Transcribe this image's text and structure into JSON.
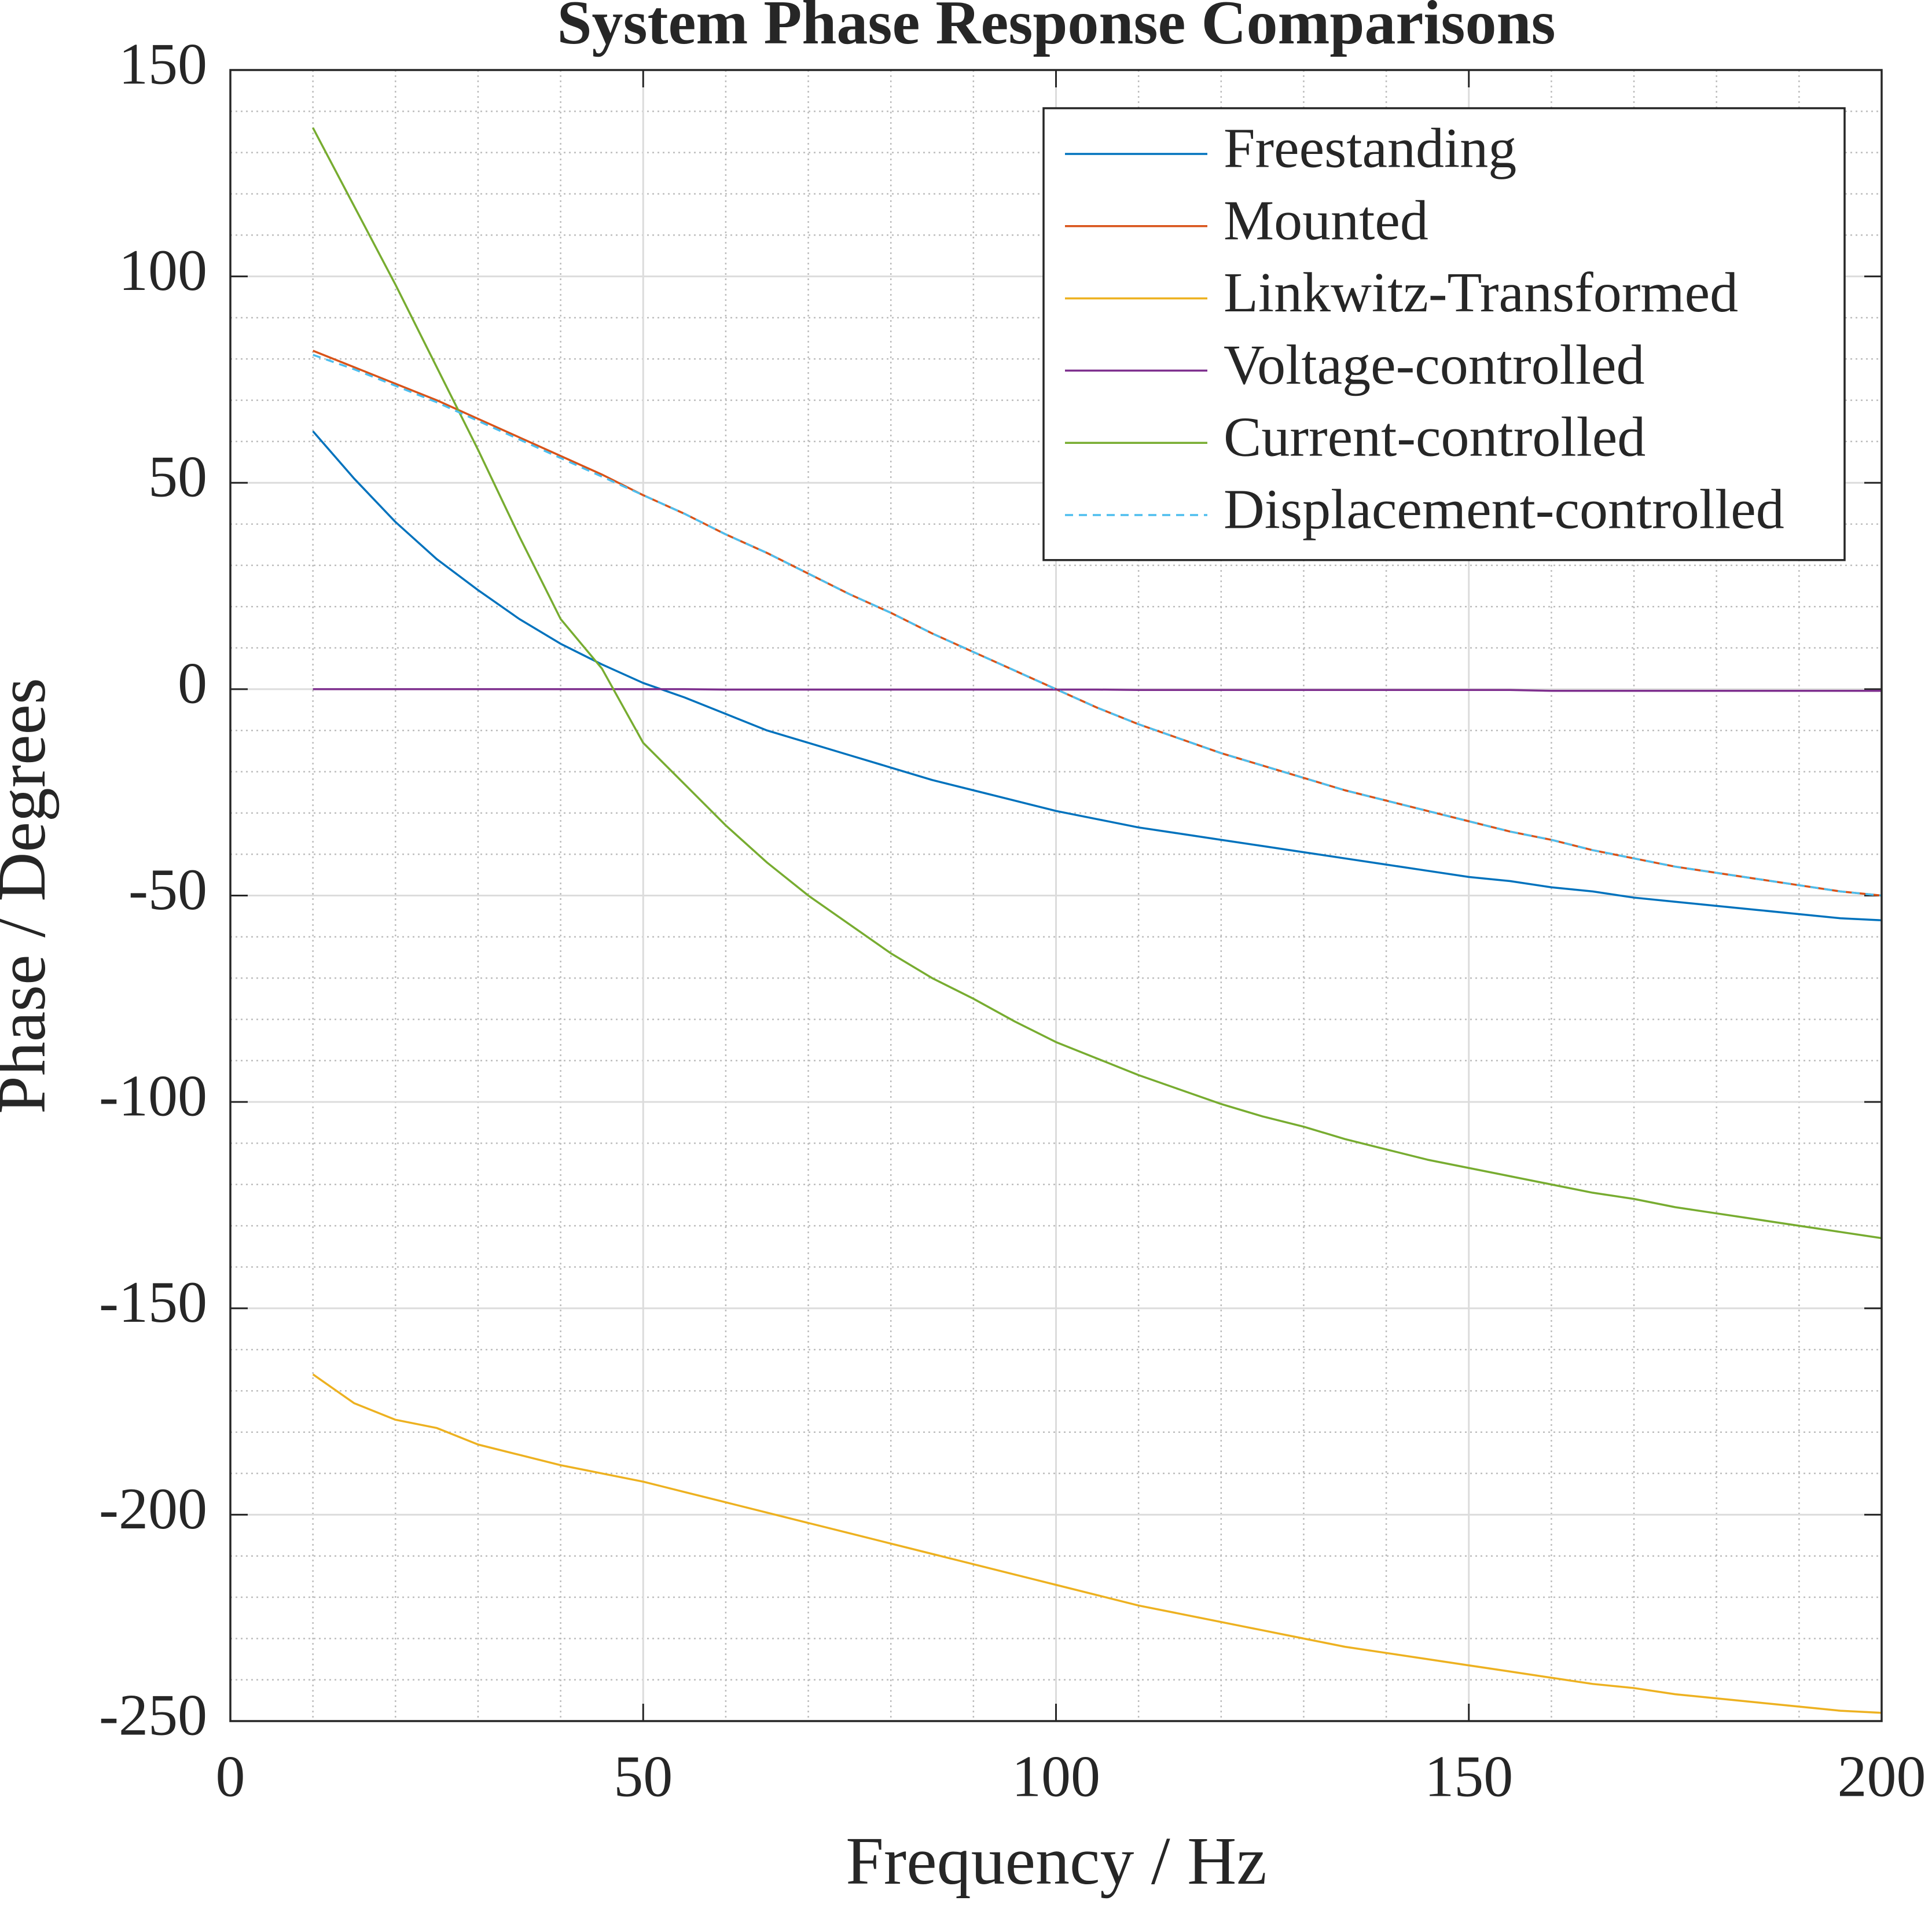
{
  "chart_data": {
    "type": "line",
    "title": "System Phase Response Comparisons",
    "xlabel": "Frequency / Hz",
    "ylabel": "Phase / Degrees",
    "x": [
      10,
      15,
      20,
      25,
      30,
      35,
      40,
      45,
      50,
      55,
      60,
      65,
      70,
      75,
      80,
      85,
      90,
      95,
      100,
      105,
      110,
      115,
      120,
      125,
      130,
      135,
      140,
      145,
      150,
      155,
      160,
      165,
      170,
      175,
      180,
      185,
      190,
      195,
      200
    ],
    "series": [
      {
        "name": "Freestanding",
        "color": "#0072bd",
        "values": [
          62.5,
          51,
          40.5,
          31.5,
          24,
          17,
          11,
          6,
          1.5,
          -2,
          -6,
          -10,
          -13,
          -16,
          -19,
          -22,
          -24.5,
          -27,
          -29.5,
          -31.5,
          -33.5,
          -35,
          -36.5,
          -38,
          -39.5,
          -41,
          -42.5,
          -44,
          -45.5,
          -46.5,
          -48,
          -49,
          -50.5,
          -51.5,
          -52.5,
          -53.5,
          -54.5,
          -55.5,
          -56
        ]
      },
      {
        "name": "Mounted",
        "color": "#d95319",
        "values": [
          82,
          78,
          74,
          70,
          65.5,
          61,
          56.5,
          52,
          47,
          42.5,
          37.5,
          33,
          28,
          23,
          18.5,
          13.5,
          9,
          4.5,
          0,
          -4.5,
          -8.5,
          -12,
          -15.5,
          -18.5,
          -21.5,
          -24.5,
          -27,
          -29.5,
          -32,
          -34.5,
          -36.5,
          -39,
          -41,
          -43,
          -44.5,
          -46,
          -47.5,
          -49,
          -50
        ]
      },
      {
        "name": "Linkwitz-Transformed",
        "color": "#edb120",
        "values": [
          -166,
          -173,
          -177,
          -179,
          -183,
          -185.5,
          -188,
          -190,
          -192,
          -194.5,
          -197,
          -199.5,
          -202,
          -204.5,
          -207,
          -209.5,
          -212,
          -214.5,
          -217,
          -219.5,
          -222,
          -224,
          -226,
          -228,
          -230,
          -232,
          -233.5,
          -235,
          -236.5,
          -238,
          -239.5,
          -241,
          -242,
          -243.5,
          -244.5,
          -245.5,
          -246.5,
          -247.5,
          -248
        ]
      },
      {
        "name": "Voltage-controlled",
        "color": "#7e2f8e",
        "values": [
          0,
          0,
          0,
          0,
          0,
          0,
          0,
          0,
          0,
          0,
          -0.1,
          -0.1,
          -0.1,
          -0.1,
          -0.1,
          -0.1,
          -0.1,
          -0.1,
          -0.1,
          -0.1,
          -0.2,
          -0.2,
          -0.2,
          -0.2,
          -0.2,
          -0.2,
          -0.2,
          -0.2,
          -0.2,
          -0.2,
          -0.4,
          -0.4,
          -0.4,
          -0.4,
          -0.4,
          -0.4,
          -0.4,
          -0.4,
          -0.4
        ]
      },
      {
        "name": "Current-controlled",
        "color": "#77ac30",
        "values": [
          136,
          117,
          98,
          78,
          58,
          37,
          17,
          5,
          -13,
          -23,
          -33,
          -42,
          -50,
          -57,
          -64,
          -70,
          -75,
          -80.5,
          -85.5,
          -89.5,
          -93.5,
          -97,
          -100.5,
          -103.5,
          -106,
          -109,
          -111.5,
          -114,
          -116,
          -118,
          -120,
          -122,
          -123.5,
          -125.5,
          -127,
          -128.5,
          -130,
          -131.5,
          -133
        ]
      },
      {
        "name": "Displacement-controlled",
        "color": "#4dbeee",
        "dashed": true,
        "values": [
          81,
          77.5,
          73.5,
          69.5,
          65,
          60.5,
          56,
          51.5,
          47,
          42.5,
          37.5,
          33,
          28,
          23,
          18.5,
          13.5,
          9,
          4.5,
          0,
          -4.5,
          -8.5,
          -12,
          -15.5,
          -18.5,
          -21.5,
          -24.5,
          -27,
          -29.5,
          -32,
          -34.5,
          -36.5,
          -39,
          -41,
          -43,
          -44.5,
          -46,
          -47.5,
          -49,
          -50
        ]
      }
    ],
    "xlim": [
      0,
      200
    ],
    "xticks": [
      0,
      50,
      100,
      150,
      200
    ],
    "xminorticks": [
      10,
      20,
      30,
      40,
      60,
      70,
      80,
      90,
      110,
      120,
      130,
      140,
      160,
      170,
      180,
      190
    ],
    "ylim": [
      -250,
      150
    ],
    "yticks": [
      -250,
      -200,
      -150,
      -100,
      -50,
      0,
      50,
      100,
      150
    ],
    "yminorticks": [
      -240,
      -230,
      -220,
      -210,
      -190,
      -180,
      -170,
      -160,
      -140,
      -130,
      -120,
      -110,
      -90,
      -80,
      -70,
      -60,
      -40,
      -30,
      -20,
      -10,
      10,
      20,
      30,
      40,
      60,
      70,
      80,
      90,
      110,
      120,
      130,
      140
    ],
    "grid": true,
    "minor_grid": true,
    "legend": "top-right"
  }
}
